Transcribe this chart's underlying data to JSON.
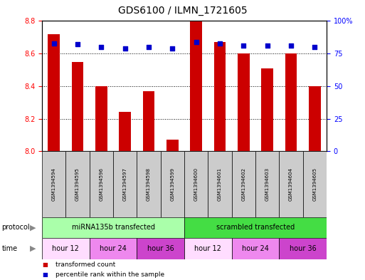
{
  "title": "GDS6100 / ILMN_1721605",
  "samples": [
    "GSM1394594",
    "GSM1394595",
    "GSM1394596",
    "GSM1394597",
    "GSM1394598",
    "GSM1394599",
    "GSM1394600",
    "GSM1394601",
    "GSM1394602",
    "GSM1394603",
    "GSM1394604",
    "GSM1394605"
  ],
  "bar_values": [
    8.72,
    8.55,
    8.4,
    8.24,
    8.37,
    8.07,
    8.8,
    8.67,
    8.6,
    8.51,
    8.6,
    8.4
  ],
  "percentile_values": [
    83,
    82,
    80,
    79,
    80,
    79,
    84,
    83,
    81,
    81,
    81,
    80
  ],
  "ymin": 8.0,
  "ymax": 8.8,
  "yticks": [
    8.0,
    8.2,
    8.4,
    8.6,
    8.8
  ],
  "right_yticks": [
    0,
    25,
    50,
    75,
    100
  ],
  "bar_color": "#cc0000",
  "dot_color": "#0000cc",
  "protocol_groups": [
    {
      "label": "miRNA135b transfected",
      "start": 0,
      "end": 6,
      "color": "#aaffaa"
    },
    {
      "label": "scrambled transfected",
      "start": 6,
      "end": 12,
      "color": "#44dd44"
    }
  ],
  "time_groups": [
    {
      "label": "hour 12",
      "start": 0,
      "end": 2,
      "color": "#ffddff"
    },
    {
      "label": "hour 24",
      "start": 2,
      "end": 4,
      "color": "#ee88ee"
    },
    {
      "label": "hour 36",
      "start": 4,
      "end": 6,
      "color": "#cc44cc"
    },
    {
      "label": "hour 12",
      "start": 6,
      "end": 8,
      "color": "#ffddff"
    },
    {
      "label": "hour 24",
      "start": 8,
      "end": 10,
      "color": "#ee88ee"
    },
    {
      "label": "hour 36",
      "start": 10,
      "end": 12,
      "color": "#cc44cc"
    }
  ],
  "bar_width": 0.5,
  "protocol_label": "protocol",
  "time_label": "time",
  "legend": [
    {
      "color": "#cc0000",
      "label": "transformed count"
    },
    {
      "color": "#0000cc",
      "label": "percentile rank within the sample"
    }
  ],
  "sample_bg_color": "#cccccc",
  "title_fontsize": 10,
  "tick_fontsize": 7,
  "label_fontsize": 7,
  "sample_fontsize": 5,
  "row_fontsize": 7
}
